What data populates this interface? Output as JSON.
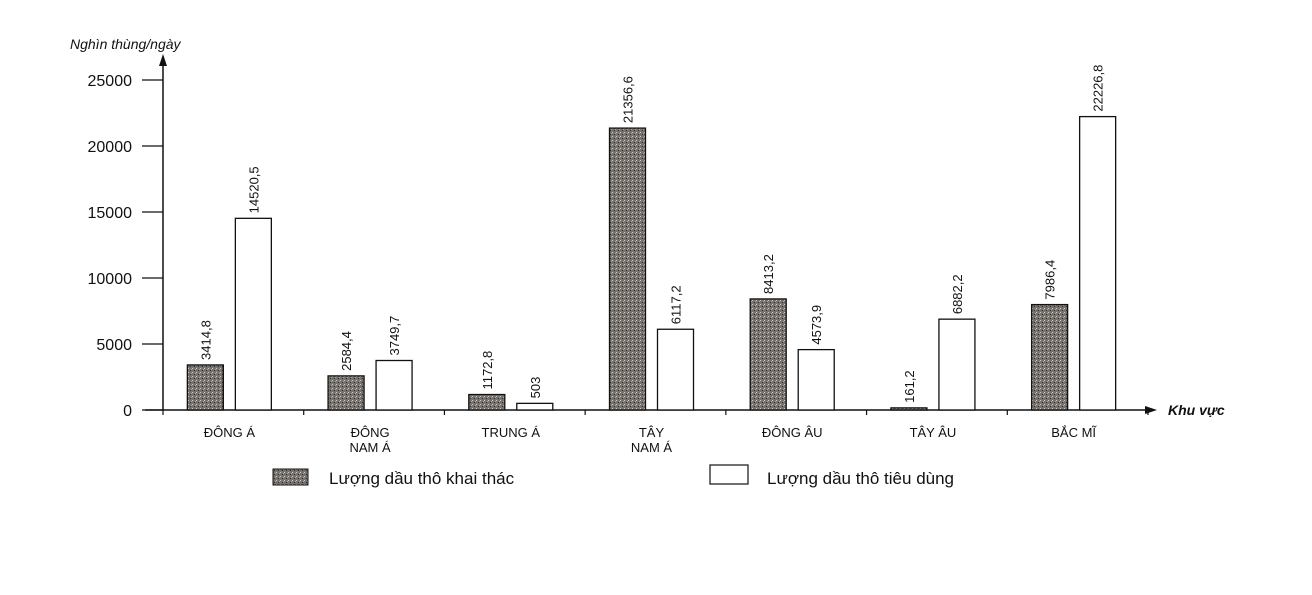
{
  "chart_data": {
    "type": "bar",
    "ylabel": "Nghìn thùng/ngày",
    "xlabel": "Khu vực",
    "ylim": [
      0,
      25000
    ],
    "yticks": [
      0,
      5000,
      10000,
      15000,
      20000,
      25000
    ],
    "categories": [
      [
        "ĐÔNG Á"
      ],
      [
        "ĐÔNG",
        "NAM Á"
      ],
      [
        "TRUNG Á"
      ],
      [
        "TÂY",
        "NAM Á"
      ],
      [
        "ĐÔNG ÂU"
      ],
      [
        "TÂY ÂU"
      ],
      [
        "BẮC MĨ"
      ]
    ],
    "series": [
      {
        "name": "Lượng dầu thô khai thác",
        "values": [
          3414.8,
          2584.4,
          1172.8,
          21356.6,
          8413.2,
          161.2,
          7986.4
        ],
        "labels": [
          "3414,8",
          "2584,4",
          "1172,8",
          "21356,6",
          "8413,2",
          "161,2",
          "7986,4"
        ],
        "color": "#6e6a66"
      },
      {
        "name": "Lượng dầu thô tiêu dùng",
        "values": [
          14520.5,
          3749.7,
          503,
          6117.2,
          4573.9,
          6882.2,
          22226.8
        ],
        "labels": [
          "14520,5",
          "3749,7",
          "503",
          "6117,2",
          "4573,9",
          "6882,2",
          "22226,8"
        ],
        "color": "#ffffff"
      }
    ],
    "grid": false,
    "legend_position": "bottom"
  }
}
